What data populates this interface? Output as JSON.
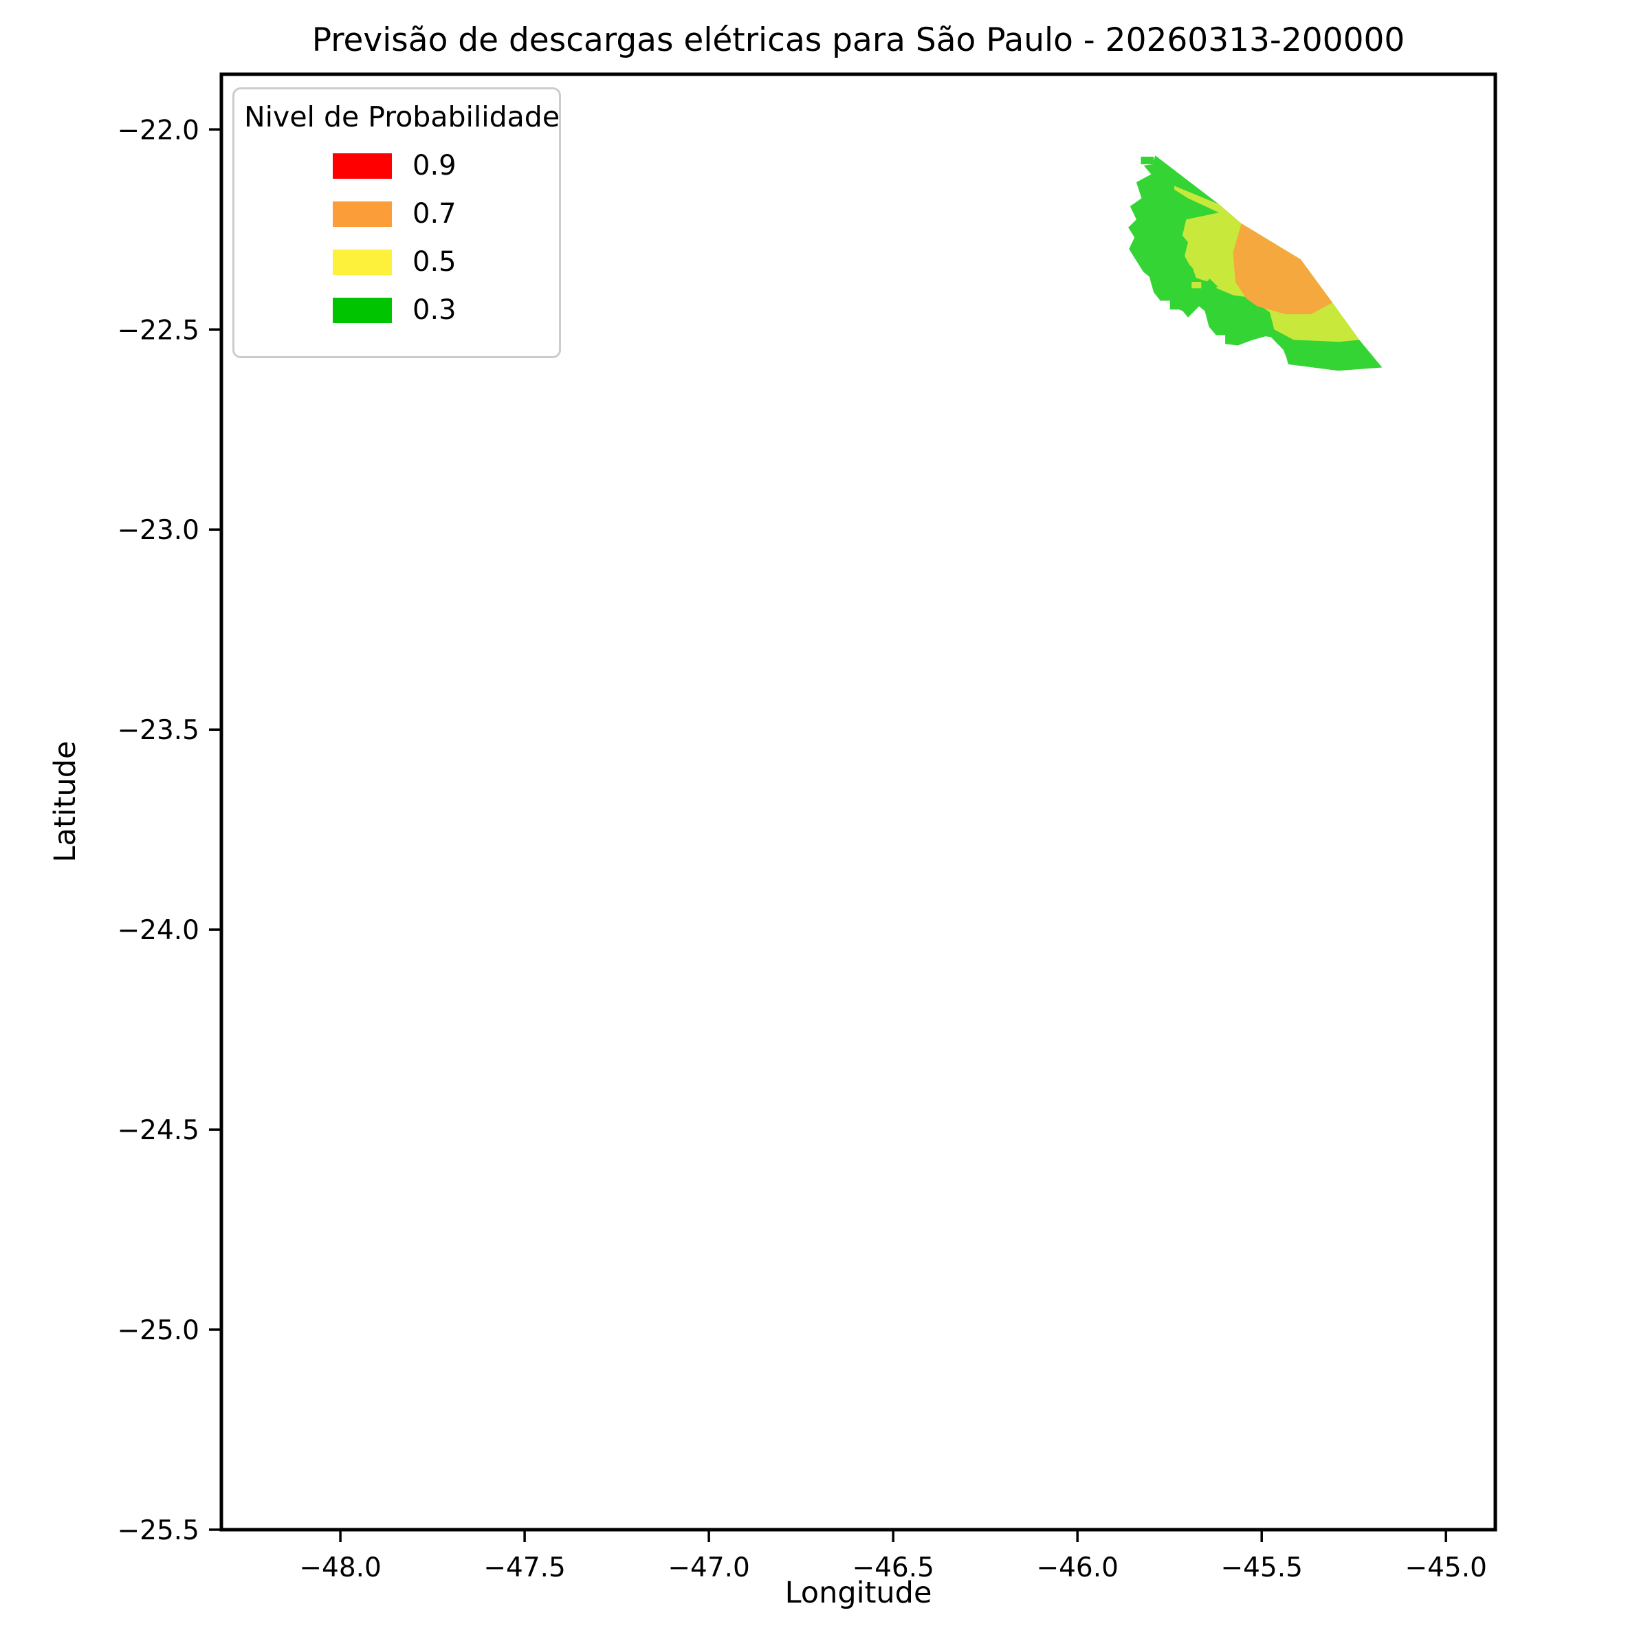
{
  "chart_data": {
    "type": "filled-contour-map",
    "title": "Previsão de descargas elétricas para São Paulo - 20260313-200000",
    "xlabel": "Longitude",
    "ylabel": "Latitude",
    "xlim": [
      -48.323,
      -44.866
    ],
    "ylim": [
      -25.5,
      -21.862
    ],
    "grid": false,
    "xticks": [
      -48.0,
      -47.5,
      -47.0,
      -46.5,
      -46.0,
      -45.5,
      -45.0
    ],
    "xtick_labels": [
      "−48.0",
      "−47.5",
      "−47.0",
      "−46.5",
      "−46.0",
      "−45.5",
      "−45.0"
    ],
    "yticks": [
      -22.0,
      -22.5,
      -23.0,
      -23.5,
      -24.0,
      -24.5,
      -25.0,
      -25.5
    ],
    "ytick_labels": [
      "−22.0",
      "−22.5",
      "−23.0",
      "−23.5",
      "−24.0",
      "−24.5",
      "−25.0",
      "−25.5"
    ],
    "legend": {
      "title": "Nivel de Probabilidade",
      "position": "upper left",
      "entries": [
        {
          "label": "0.9",
          "color": "#ff0000"
        },
        {
          "label": "0.7",
          "color": "#fb9e3a"
        },
        {
          "label": "0.5",
          "color": "#fdf13b"
        },
        {
          "label": "0.3",
          "color": "#00c400"
        }
      ]
    },
    "map_fill_colors": {
      "prob_0.3": "#33d433",
      "prob_0.5": "#c9e83c",
      "prob_0.7": "#f5a83e"
    },
    "regions": [
      {
        "name": "prob-0.3-outer",
        "level": 0.3,
        "color": "#33d433",
        "points": [
          [
            -45.789,
            -22.065
          ],
          [
            -45.616,
            -22.187
          ],
          [
            -45.555,
            -22.235
          ],
          [
            -45.394,
            -22.325
          ],
          [
            -45.308,
            -22.433
          ],
          [
            -45.235,
            -22.526
          ],
          [
            -45.173,
            -22.595
          ],
          [
            -45.292,
            -22.603
          ],
          [
            -45.428,
            -22.587
          ],
          [
            -45.433,
            -22.57
          ],
          [
            -45.441,
            -22.551
          ],
          [
            -45.475,
            -22.519
          ],
          [
            -45.49,
            -22.517
          ],
          [
            -45.524,
            -22.526
          ],
          [
            -45.565,
            -22.54
          ],
          [
            -45.599,
            -22.536
          ],
          [
            -45.599,
            -22.514
          ],
          [
            -45.624,
            -22.514
          ],
          [
            -45.643,
            -22.493
          ],
          [
            -45.654,
            -22.454
          ],
          [
            -45.67,
            -22.442
          ],
          [
            -45.7,
            -22.47
          ],
          [
            -45.714,
            -22.454
          ],
          [
            -45.724,
            -22.45
          ],
          [
            -45.749,
            -22.45
          ],
          [
            -45.749,
            -22.428
          ],
          [
            -45.775,
            -22.428
          ],
          [
            -45.793,
            -22.407
          ],
          [
            -45.805,
            -22.368
          ],
          [
            -45.821,
            -22.356
          ],
          [
            -45.86,
            -22.299
          ],
          [
            -45.845,
            -22.27
          ],
          [
            -45.862,
            -22.245
          ],
          [
            -45.84,
            -22.225
          ],
          [
            -45.857,
            -22.192
          ],
          [
            -45.826,
            -22.172
          ],
          [
            -45.84,
            -22.132
          ],
          [
            -45.8,
            -22.112
          ],
          [
            -45.82,
            -22.09
          ],
          [
            -45.793,
            -22.087
          ],
          [
            -45.793,
            -22.078
          ]
        ]
      },
      {
        "name": "prob-0.3-notch",
        "level": 0.3,
        "color": "#33d433",
        "points": [
          [
            -45.828,
            -22.068
          ],
          [
            -45.793,
            -22.068
          ],
          [
            -45.793,
            -22.087
          ],
          [
            -45.828,
            -22.087
          ]
        ]
      },
      {
        "name": "prob-0.5",
        "level": 0.5,
        "color": "#c9e83c",
        "points": [
          [
            -45.737,
            -22.141
          ],
          [
            -45.616,
            -22.187
          ],
          [
            -45.555,
            -22.235
          ],
          [
            -45.394,
            -22.325
          ],
          [
            -45.308,
            -22.433
          ],
          [
            -45.235,
            -22.526
          ],
          [
            -45.29,
            -22.531
          ],
          [
            -45.357,
            -22.528
          ],
          [
            -45.413,
            -22.526
          ],
          [
            -45.466,
            -22.5
          ],
          [
            -45.478,
            -22.457
          ],
          [
            -45.515,
            -22.433
          ],
          [
            -45.54,
            -22.419
          ],
          [
            -45.578,
            -22.414
          ],
          [
            -45.622,
            -22.397
          ],
          [
            -45.631,
            -22.385
          ],
          [
            -45.678,
            -22.371
          ],
          [
            -45.687,
            -22.347
          ],
          [
            -45.697,
            -22.337
          ],
          [
            -45.709,
            -22.316
          ],
          [
            -45.7,
            -22.282
          ],
          [
            -45.715,
            -22.265
          ],
          [
            -45.705,
            -22.225
          ],
          [
            -45.616,
            -22.208
          ],
          [
            -45.7,
            -22.172
          ],
          [
            -45.737,
            -22.15
          ]
        ]
      },
      {
        "name": "prob-0.7",
        "level": 0.7,
        "color": "#f5a83e",
        "points": [
          [
            -45.555,
            -22.235
          ],
          [
            -45.394,
            -22.325
          ],
          [
            -45.308,
            -22.433
          ],
          [
            -45.366,
            -22.462
          ],
          [
            -45.435,
            -22.462
          ],
          [
            -45.512,
            -22.442
          ],
          [
            -45.541,
            -22.423
          ],
          [
            -45.571,
            -22.382
          ],
          [
            -45.578,
            -22.308
          ]
        ]
      },
      {
        "name": "prob-0.3-triangle-inlier",
        "level": 0.3,
        "color": "#33d433",
        "points": [
          [
            -45.663,
            -22.394
          ],
          [
            -45.641,
            -22.373
          ],
          [
            -45.618,
            -22.394
          ]
        ]
      },
      {
        "name": "prob-0.5-mini-rect",
        "level": 0.5,
        "color": "#c9e83c",
        "points": [
          [
            -45.69,
            -22.381
          ],
          [
            -45.664,
            -22.381
          ],
          [
            -45.664,
            -22.397
          ],
          [
            -45.69,
            -22.397
          ]
        ]
      }
    ]
  }
}
